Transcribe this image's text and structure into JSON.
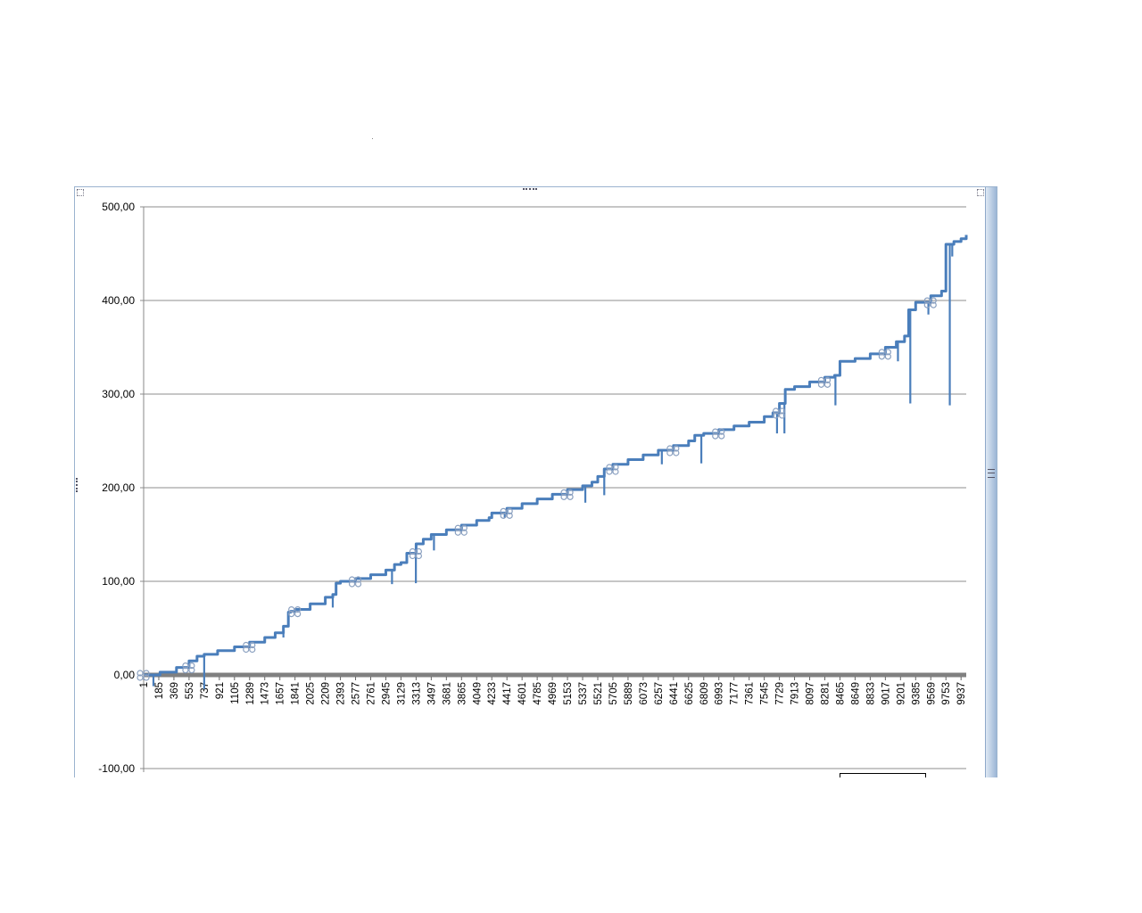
{
  "chart_data": {
    "type": "line",
    "title": "",
    "xlabel": "",
    "ylabel": "",
    "ylim": [
      -100,
      500
    ],
    "xlim": [
      1,
      10000
    ],
    "grid": true,
    "y_ticks": [
      "-100,00",
      "0,00",
      "100,00",
      "200,00",
      "300,00",
      "400,00",
      "500,00"
    ],
    "y_tick_values": [
      -100,
      0,
      100,
      200,
      300,
      400,
      500
    ],
    "x_ticks": [
      "1",
      "185",
      "369",
      "553",
      "737",
      "921",
      "1105",
      "1289",
      "1473",
      "1657",
      "1841",
      "2025",
      "2209",
      "2393",
      "2577",
      "2761",
      "2945",
      "3129",
      "3313",
      "3497",
      "3681",
      "3865",
      "4049",
      "4233",
      "4417",
      "4601",
      "4785",
      "4969",
      "5153",
      "5337",
      "5521",
      "5705",
      "5889",
      "6073",
      "6257",
      "6441",
      "6625",
      "6809",
      "6993",
      "7177",
      "7361",
      "7545",
      "7729",
      "7913",
      "8097",
      "8281",
      "8465",
      "8649",
      "8833",
      "9017",
      "9201",
      "9385",
      "9569",
      "9753",
      "9937"
    ],
    "series": [
      {
        "color": "#4a7ebb",
        "x": [
          1,
          200,
          400,
          553,
          650,
          737,
          900,
          1105,
          1289,
          1473,
          1600,
          1700,
          1760,
          1790,
          1841,
          2025,
          2209,
          2300,
          2340,
          2393,
          2577,
          2761,
          2945,
          3050,
          3129,
          3200,
          3313,
          3400,
          3497,
          3681,
          3865,
          4049,
          4200,
          4233,
          4417,
          4601,
          4785,
          4969,
          5153,
          5337,
          5450,
          5521,
          5600,
          5705,
          5889,
          6073,
          6257,
          6441,
          6625,
          6700,
          6809,
          6993,
          7177,
          7361,
          7545,
          7650,
          7729,
          7800,
          7913,
          8097,
          8281,
          8400,
          8465,
          8649,
          8833,
          9017,
          9150,
          9250,
          9300,
          9385,
          9569,
          9700,
          9753,
          9850,
          9937,
          10000
        ],
        "y": [
          0,
          3,
          8,
          15,
          20,
          22,
          26,
          30,
          35,
          40,
          45,
          52,
          67,
          68,
          70,
          76,
          83,
          86,
          98,
          100,
          103,
          107,
          112,
          118,
          120,
          130,
          140,
          145,
          150,
          155,
          160,
          165,
          168,
          173,
          178,
          183,
          188,
          193,
          198,
          202,
          206,
          212,
          220,
          225,
          230,
          235,
          240,
          245,
          250,
          256,
          258,
          262,
          266,
          270,
          276,
          280,
          290,
          305,
          308,
          313,
          318,
          320,
          335,
          338,
          343,
          350,
          356,
          362,
          390,
          398,
          405,
          410,
          460,
          463,
          466,
          470
        ]
      }
    ],
    "markers_x": [
      1,
      553,
      1289,
      1841,
      2577,
      3313,
      3865,
      4417,
      5153,
      5705,
      6441,
      6993,
      7729,
      8281,
      9017,
      9569
    ],
    "dips": [
      {
        "x": 120,
        "y": -12
      },
      {
        "x": 737,
        "y": -15
      },
      {
        "x": 1700,
        "y": 40
      },
      {
        "x": 2300,
        "y": 72
      },
      {
        "x": 3020,
        "y": 97
      },
      {
        "x": 3310,
        "y": 98
      },
      {
        "x": 3530,
        "y": 133
      },
      {
        "x": 4390,
        "y": 168
      },
      {
        "x": 5370,
        "y": 184
      },
      {
        "x": 5600,
        "y": 192
      },
      {
        "x": 6300,
        "y": 225
      },
      {
        "x": 6780,
        "y": 226
      },
      {
        "x": 7700,
        "y": 258
      },
      {
        "x": 7790,
        "y": 258
      },
      {
        "x": 8410,
        "y": 288
      },
      {
        "x": 9170,
        "y": 335
      },
      {
        "x": 9320,
        "y": 290
      },
      {
        "x": 9540,
        "y": 385
      },
      {
        "x": 9800,
        "y": 288
      },
      {
        "x": 9830,
        "y": 447
      }
    ]
  }
}
